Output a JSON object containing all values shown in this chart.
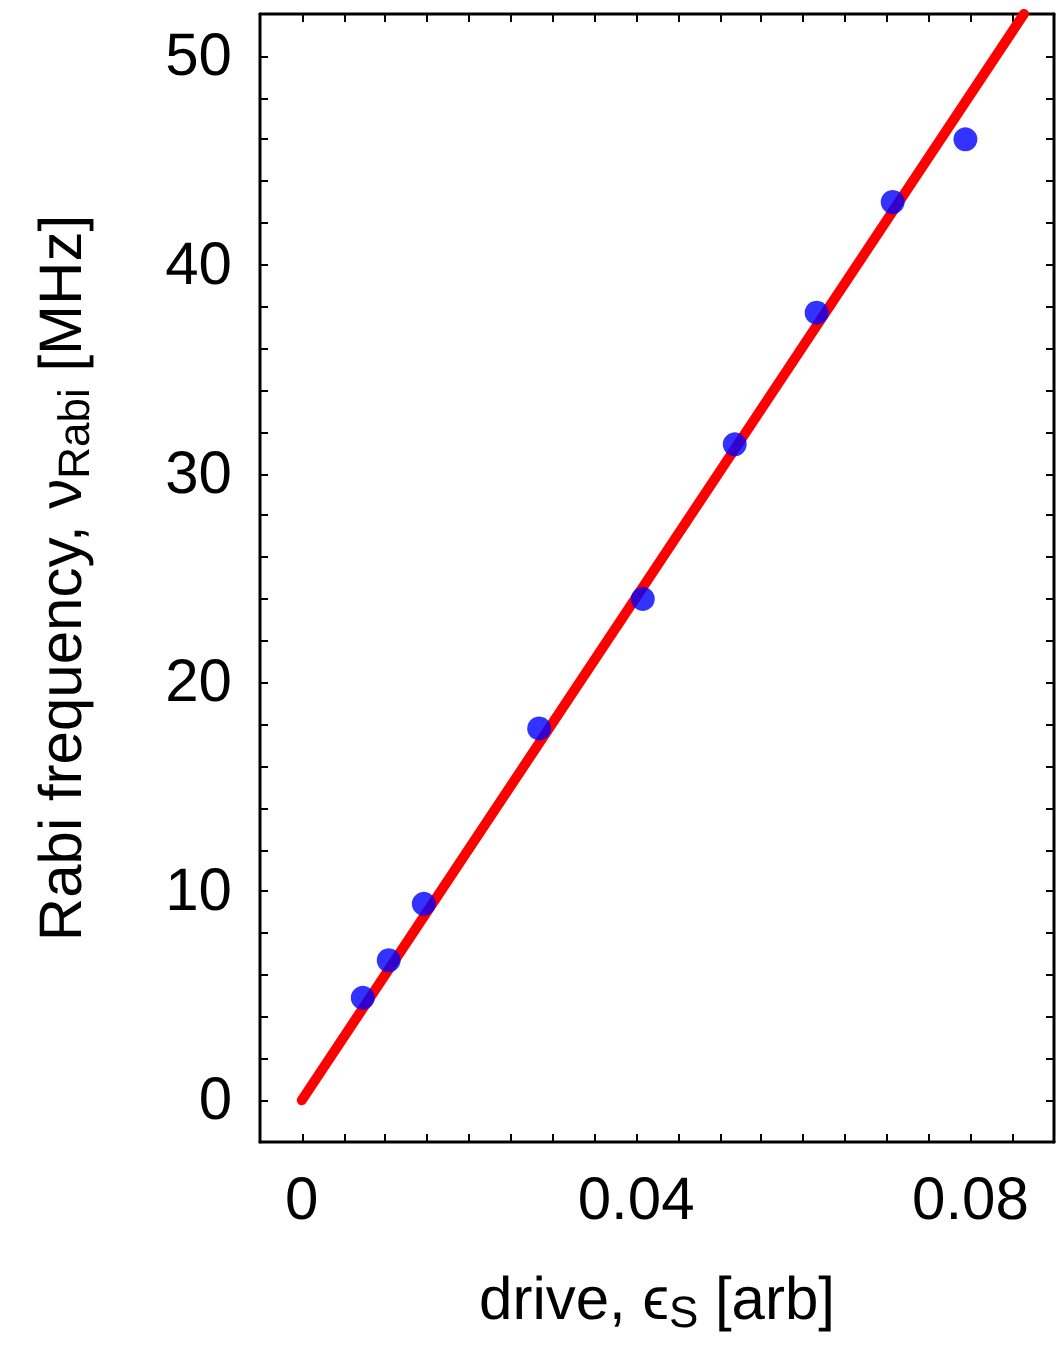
{
  "chart_data": {
    "type": "scatter",
    "xlabel": "drive, ϵ$_{S}$ [arb]",
    "ylabel": "Rabi frequency, ν$_{Rabi}$ [MHz]",
    "xlim": [
      -0.005,
      0.09
    ],
    "ylim": [
      -2,
      52
    ],
    "xticks": [
      0,
      {
        "value": 0.005,
        "label": null
      },
      {
        "value": 0.01,
        "label": null
      },
      {
        "value": 0.015,
        "label": null
      },
      {
        "value": 0.02,
        "label": null
      },
      {
        "value": 0.025,
        "label": null
      },
      {
        "value": 0.03,
        "label": null
      },
      {
        "value": 0.035,
        "label": null
      },
      0.04,
      {
        "value": 0.045,
        "label": null
      },
      {
        "value": 0.05,
        "label": null
      },
      {
        "value": 0.055,
        "label": null
      },
      {
        "value": 0.06,
        "label": null
      },
      {
        "value": 0.065,
        "label": null
      },
      {
        "value": 0.07,
        "label": null
      },
      {
        "value": 0.075,
        "label": null
      },
      0.08,
      {
        "value": 0.085,
        "label": null
      }
    ],
    "yticks": [
      0,
      {
        "value": 2,
        "label": null
      },
      {
        "value": 4,
        "label": null
      },
      {
        "value": 6,
        "label": null
      },
      {
        "value": 8,
        "label": null
      },
      10,
      {
        "value": 12,
        "label": null
      },
      {
        "value": 14,
        "label": null
      },
      {
        "value": 16,
        "label": null
      },
      {
        "value": 18,
        "label": null
      },
      20,
      {
        "value": 22,
        "label": null
      },
      {
        "value": 24,
        "label": null
      },
      {
        "value": 26,
        "label": null
      },
      {
        "value": 28,
        "label": null
      },
      30,
      {
        "value": 32,
        "label": null
      },
      {
        "value": 34,
        "label": null
      },
      {
        "value": 36,
        "label": null
      },
      {
        "value": 38,
        "label": null
      },
      40,
      {
        "value": 42,
        "label": null
      },
      {
        "value": 44,
        "label": null
      },
      {
        "value": 46,
        "label": null
      },
      {
        "value": 48,
        "label": null
      },
      50
    ],
    "grid": false,
    "series": [
      {
        "type": "line",
        "color": "#ff0000",
        "marker": "none",
        "line_style": "solid",
        "x": [
          0,
          0.0864
        ],
        "values": [
          0,
          52
        ]
      },
      {
        "color": "#0000ff",
        "marker": "circle",
        "x": [
          0.0073,
          0.0104,
          0.0146,
          0.0284,
          0.0408,
          0.0518,
          0.0616,
          0.0707,
          0.0794
        ],
        "values": [
          4.9,
          6.7,
          9.4,
          17.8,
          24.0,
          31.4,
          37.7,
          43.0,
          46.0
        ]
      }
    ]
  }
}
